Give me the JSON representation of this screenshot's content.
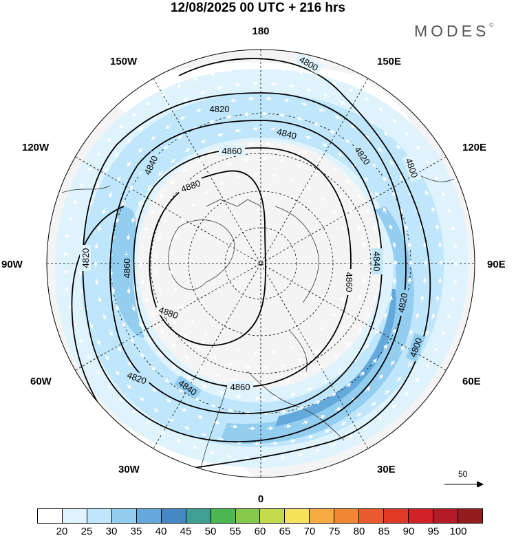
{
  "title": "12/08/2025  00 UTC  + 216 hrs",
  "brand": "MODES",
  "brand_mark": "©",
  "longitude_labels": {
    "n": "180",
    "s": "0",
    "e": "90E",
    "w": "90W",
    "ne": "150E",
    "nw": "150W",
    "se": "30E",
    "sw": "30W",
    "ene": "120E",
    "wnw": "120W",
    "ese": "60E",
    "wsw": "60W"
  },
  "reference_vector": {
    "value": "50",
    "icon": "arrow-right-icon"
  },
  "colorbar": {
    "colors": [
      "#ffffff",
      "#dff3fd",
      "#bfe6fa",
      "#93cdf0",
      "#64a9dc",
      "#4589c4",
      "#3da092",
      "#4cb84f",
      "#86c94b",
      "#c3da4a",
      "#f6e15a",
      "#f4ac42",
      "#f08734",
      "#ea5a2b",
      "#e03a26",
      "#d02227",
      "#b51b26",
      "#921b1d"
    ],
    "labels": [
      "20",
      "25",
      "30",
      "35",
      "40",
      "45",
      "50",
      "55",
      "60",
      "65",
      "70",
      "75",
      "80",
      "85",
      "90",
      "95",
      "100"
    ]
  },
  "chart_data": {
    "type": "polar-stereographic-map",
    "projection": "north polar stereographic",
    "contour_field": "geopotential height",
    "contours": [
      {
        "value": 4800,
        "label": "4800"
      },
      {
        "value": 4820,
        "label": "4820"
      },
      {
        "value": 4840,
        "label": "4840"
      },
      {
        "value": 4860,
        "label": "4860"
      },
      {
        "value": 4880,
        "label": "4880"
      }
    ],
    "shaded_field_levels": [
      20,
      25,
      30,
      35,
      40,
      45,
      50,
      55,
      60,
      65,
      70,
      75,
      80,
      85,
      90,
      95,
      100
    ],
    "max_shaded_level_visible": 40,
    "wind_vectors": true,
    "reference_vector_magnitude": 50
  }
}
